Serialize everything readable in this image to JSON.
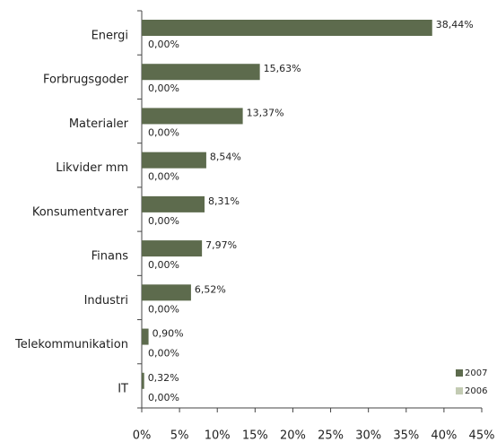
{
  "chart_data": {
    "type": "hbar",
    "categories": [
      "Energi",
      "Forbrugsgoder",
      "Materialer",
      "Likvider mm",
      "Konsumentvarer",
      "Finans",
      "Industri",
      "Telekommunikation",
      "IT"
    ],
    "series": [
      {
        "name": "2007",
        "color": "#5d6b4d",
        "values": [
          38.44,
          15.63,
          13.37,
          8.54,
          8.31,
          7.97,
          6.52,
          0.9,
          0.32
        ],
        "value_labels": [
          "38,44%",
          "15,63%",
          "13,37%",
          "8,54%",
          "8,31%",
          "7,97%",
          "6,52%",
          "0,90%",
          "0,32%"
        ]
      },
      {
        "name": "2006",
        "color": "#c3cbb3",
        "values": [
          0,
          0,
          0,
          0,
          0,
          0,
          0,
          0,
          0
        ],
        "value_labels": [
          "0,00%",
          "0,00%",
          "0,00%",
          "0,00%",
          "0,00%",
          "0,00%",
          "0,00%",
          "0,00%",
          "0,00%"
        ]
      }
    ],
    "xlim": [
      0,
      45
    ],
    "xticks": [
      {
        "value": 0,
        "label": "0%"
      },
      {
        "value": 5,
        "label": "5%"
      },
      {
        "value": 10,
        "label": "10%"
      },
      {
        "value": 15,
        "label": "15%"
      },
      {
        "value": 20,
        "label": "20%"
      },
      {
        "value": 25,
        "label": "25%"
      },
      {
        "value": 30,
        "label": "30%"
      },
      {
        "value": 35,
        "label": "35%"
      },
      {
        "value": 40,
        "label": "40%"
      },
      {
        "value": 45,
        "label": "45%"
      }
    ]
  }
}
